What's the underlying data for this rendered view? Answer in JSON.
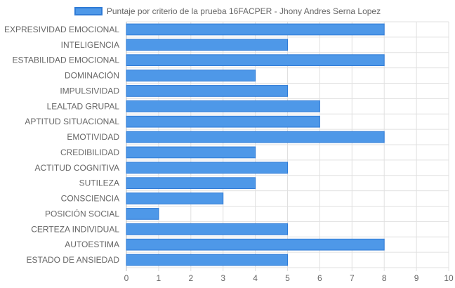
{
  "chart_data": {
    "type": "bar",
    "orientation": "horizontal",
    "categories": [
      "EXPRESIVIDAD EMOCIONAL",
      "INTELIGENCIA",
      "ESTABILIDAD EMOCIONAL",
      "DOMINACIÓN",
      "IMPULSIVIDAD",
      "LEALTAD GRUPAL",
      "APTITUD SITUACIONAL",
      "EMOTIVIDAD",
      "CREDIBILIDAD",
      "ACTITUD COGNITIVA",
      "SUTILEZA",
      "CONSCIENCIA",
      "POSICIÓN SOCIAL",
      "CERTEZA INDIVIDUAL",
      "AUTOESTIMA",
      "ESTADO DE ANSIEDAD"
    ],
    "series": [
      {
        "name": "Puntaje por criterio de la prueba 16FACPER - Jhony Andres Serna Lopez",
        "values": [
          8,
          5,
          8,
          4,
          5,
          6,
          6,
          8,
          4,
          5,
          4,
          3,
          1,
          5,
          8,
          5
        ]
      }
    ],
    "xlim": [
      0,
      10
    ],
    "xticks": [
      "0",
      "1",
      "2",
      "3",
      "4",
      "5",
      "6",
      "7",
      "8",
      "9",
      "10"
    ],
    "grid": true,
    "legend_position": "top-center",
    "colors": {
      "bar": "#4e98e8",
      "bar_border": "#2f7bd6",
      "grid": "#e0e0e0",
      "text": "#666666"
    }
  }
}
